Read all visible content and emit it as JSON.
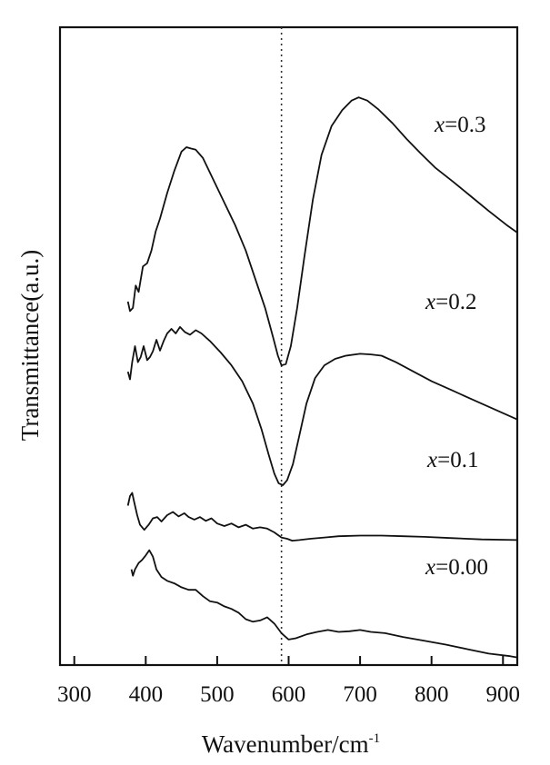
{
  "chart_data": {
    "type": "line",
    "xlabel": "Wavenumber/cm",
    "xlabel_sup": "-1",
    "ylabel": "Transmittance(a.u.)",
    "xlim": [
      280,
      920
    ],
    "xticks": [
      "300",
      "400",
      "500",
      "600",
      "700",
      "800",
      "900"
    ],
    "y_ticks_shown": false,
    "reference_line": {
      "x": 590,
      "style": "dotted"
    },
    "series": [
      {
        "name": "x=0.3",
        "label_var": "x",
        "label_rest": "=0.3",
        "points": [
          [
            375,
            0.57
          ],
          [
            378,
            0.555
          ],
          [
            382,
            0.56
          ],
          [
            386,
            0.595
          ],
          [
            390,
            0.585
          ],
          [
            396,
            0.625
          ],
          [
            402,
            0.63
          ],
          [
            408,
            0.65
          ],
          [
            414,
            0.68
          ],
          [
            420,
            0.7
          ],
          [
            430,
            0.74
          ],
          [
            440,
            0.775
          ],
          [
            450,
            0.805
          ],
          [
            457,
            0.812
          ],
          [
            463,
            0.81
          ],
          [
            470,
            0.808
          ],
          [
            480,
            0.795
          ],
          [
            495,
            0.76
          ],
          [
            510,
            0.725
          ],
          [
            525,
            0.69
          ],
          [
            540,
            0.65
          ],
          [
            555,
            0.6
          ],
          [
            567,
            0.56
          ],
          [
            578,
            0.515
          ],
          [
            585,
            0.485
          ],
          [
            590,
            0.47
          ],
          [
            596,
            0.472
          ],
          [
            603,
            0.5
          ],
          [
            612,
            0.56
          ],
          [
            622,
            0.64
          ],
          [
            634,
            0.73
          ],
          [
            646,
            0.8
          ],
          [
            660,
            0.845
          ],
          [
            675,
            0.87
          ],
          [
            688,
            0.885
          ],
          [
            698,
            0.89
          ],
          [
            710,
            0.885
          ],
          [
            725,
            0.872
          ],
          [
            745,
            0.85
          ],
          [
            765,
            0.825
          ],
          [
            785,
            0.802
          ],
          [
            805,
            0.78
          ],
          [
            830,
            0.758
          ],
          [
            855,
            0.735
          ],
          [
            880,
            0.712
          ],
          [
            905,
            0.69
          ],
          [
            920,
            0.678
          ]
        ]
      },
      {
        "name": "x=0.2",
        "label_var": "x",
        "label_rest": "=0.2",
        "points": [
          [
            375,
            0.46
          ],
          [
            378,
            0.448
          ],
          [
            381,
            0.475
          ],
          [
            385,
            0.5
          ],
          [
            389,
            0.475
          ],
          [
            393,
            0.483
          ],
          [
            397,
            0.5
          ],
          [
            402,
            0.478
          ],
          [
            406,
            0.483
          ],
          [
            410,
            0.492
          ],
          [
            415,
            0.51
          ],
          [
            420,
            0.493
          ],
          [
            425,
            0.508
          ],
          [
            430,
            0.52
          ],
          [
            436,
            0.527
          ],
          [
            442,
            0.52
          ],
          [
            448,
            0.53
          ],
          [
            455,
            0.522
          ],
          [
            462,
            0.518
          ],
          [
            470,
            0.525
          ],
          [
            478,
            0.52
          ],
          [
            490,
            0.508
          ],
          [
            505,
            0.49
          ],
          [
            520,
            0.47
          ],
          [
            535,
            0.445
          ],
          [
            550,
            0.41
          ],
          [
            562,
            0.37
          ],
          [
            572,
            0.33
          ],
          [
            580,
            0.3
          ],
          [
            586,
            0.285
          ],
          [
            592,
            0.282
          ],
          [
            598,
            0.29
          ],
          [
            606,
            0.315
          ],
          [
            615,
            0.36
          ],
          [
            625,
            0.41
          ],
          [
            637,
            0.45
          ],
          [
            650,
            0.47
          ],
          [
            665,
            0.48
          ],
          [
            680,
            0.485
          ],
          [
            700,
            0.488
          ],
          [
            715,
            0.487
          ],
          [
            730,
            0.485
          ],
          [
            750,
            0.475
          ],
          [
            775,
            0.46
          ],
          [
            800,
            0.445
          ],
          [
            830,
            0.43
          ],
          [
            860,
            0.415
          ],
          [
            890,
            0.4
          ],
          [
            920,
            0.385
          ]
        ]
      },
      {
        "name": "x=0.1",
        "label_var": "x",
        "label_rest": "=0.1",
        "points": [
          [
            375,
            0.25
          ],
          [
            378,
            0.265
          ],
          [
            381,
            0.27
          ],
          [
            384,
            0.255
          ],
          [
            388,
            0.235
          ],
          [
            392,
            0.22
          ],
          [
            398,
            0.212
          ],
          [
            404,
            0.22
          ],
          [
            410,
            0.23
          ],
          [
            416,
            0.232
          ],
          [
            422,
            0.225
          ],
          [
            430,
            0.235
          ],
          [
            438,
            0.24
          ],
          [
            446,
            0.233
          ],
          [
            454,
            0.238
          ],
          [
            460,
            0.232
          ],
          [
            468,
            0.228
          ],
          [
            476,
            0.232
          ],
          [
            484,
            0.226
          ],
          [
            492,
            0.23
          ],
          [
            500,
            0.222
          ],
          [
            510,
            0.218
          ],
          [
            520,
            0.222
          ],
          [
            530,
            0.216
          ],
          [
            540,
            0.22
          ],
          [
            550,
            0.214
          ],
          [
            560,
            0.216
          ],
          [
            570,
            0.214
          ],
          [
            580,
            0.208
          ],
          [
            590,
            0.2
          ],
          [
            598,
            0.198
          ],
          [
            605,
            0.195
          ],
          [
            615,
            0.196
          ],
          [
            630,
            0.198
          ],
          [
            650,
            0.2
          ],
          [
            670,
            0.202
          ],
          [
            700,
            0.203
          ],
          [
            730,
            0.203
          ],
          [
            760,
            0.202
          ],
          [
            790,
            0.201
          ],
          [
            830,
            0.199
          ],
          [
            870,
            0.197
          ],
          [
            920,
            0.196
          ]
        ]
      },
      {
        "name": "x=0.00",
        "label_var": "x",
        "label_rest": "=0.00",
        "points": [
          [
            380,
            0.15
          ],
          [
            382,
            0.14
          ],
          [
            385,
            0.15
          ],
          [
            390,
            0.16
          ],
          [
            395,
            0.165
          ],
          [
            400,
            0.172
          ],
          [
            405,
            0.18
          ],
          [
            410,
            0.17
          ],
          [
            415,
            0.15
          ],
          [
            422,
            0.138
          ],
          [
            430,
            0.132
          ],
          [
            440,
            0.128
          ],
          [
            450,
            0.122
          ],
          [
            460,
            0.118
          ],
          [
            470,
            0.118
          ],
          [
            480,
            0.108
          ],
          [
            490,
            0.1
          ],
          [
            500,
            0.098
          ],
          [
            510,
            0.092
          ],
          [
            520,
            0.088
          ],
          [
            530,
            0.082
          ],
          [
            540,
            0.072
          ],
          [
            550,
            0.068
          ],
          [
            560,
            0.07
          ],
          [
            570,
            0.075
          ],
          [
            580,
            0.065
          ],
          [
            590,
            0.05
          ],
          [
            600,
            0.04
          ],
          [
            610,
            0.042
          ],
          [
            625,
            0.048
          ],
          [
            640,
            0.052
          ],
          [
            655,
            0.055
          ],
          [
            670,
            0.052
          ],
          [
            685,
            0.053
          ],
          [
            700,
            0.055
          ],
          [
            715,
            0.052
          ],
          [
            735,
            0.05
          ],
          [
            760,
            0.044
          ],
          [
            790,
            0.038
          ],
          [
            820,
            0.032
          ],
          [
            850,
            0.025
          ],
          [
            880,
            0.018
          ],
          [
            910,
            0.014
          ],
          [
            920,
            0.012
          ]
        ]
      }
    ]
  }
}
